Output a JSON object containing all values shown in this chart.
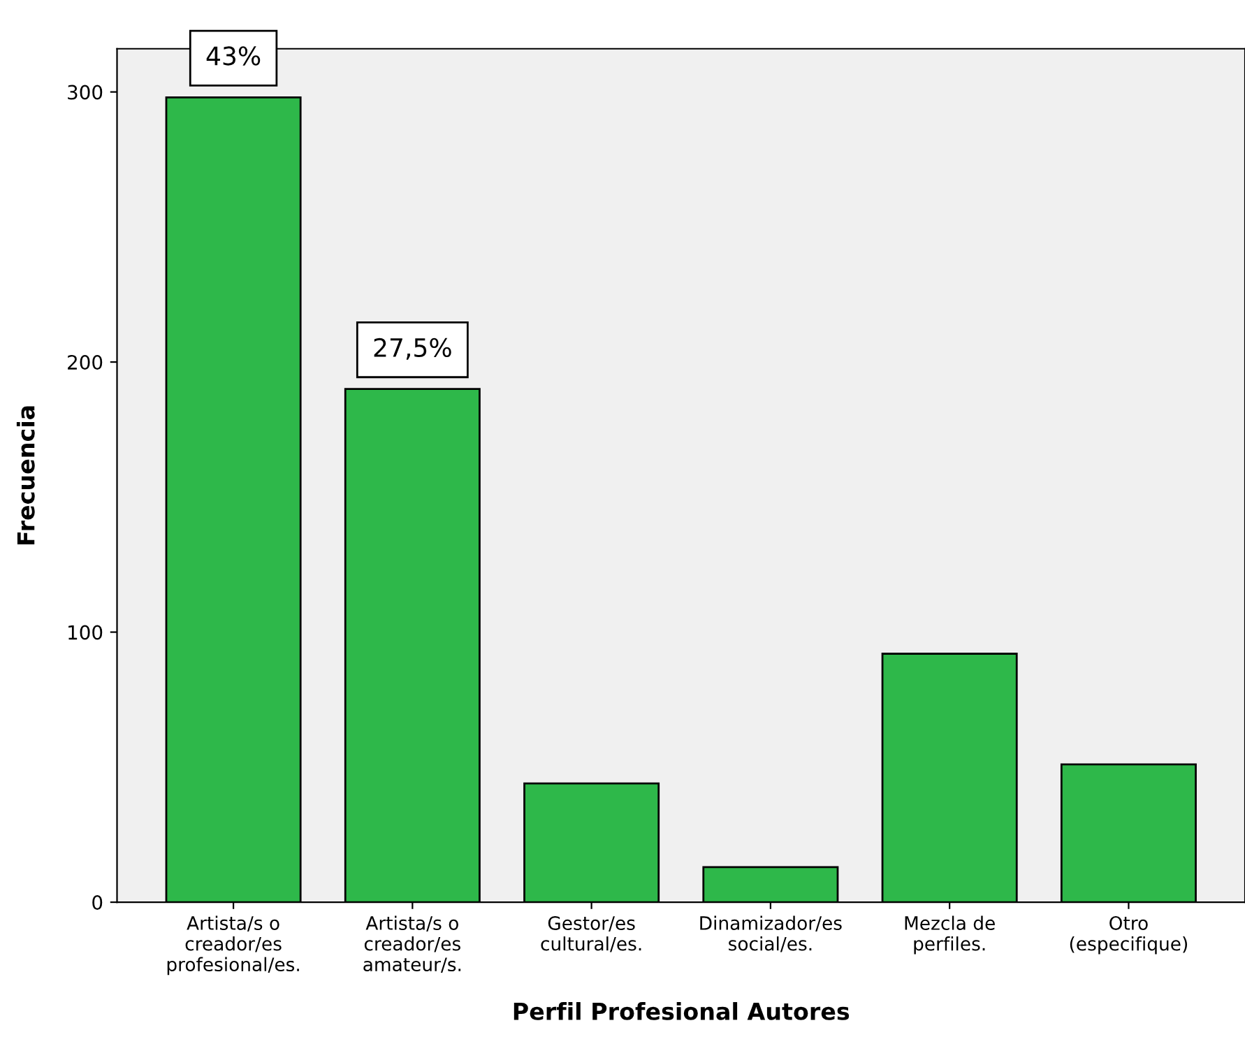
{
  "chart_data": {
    "type": "bar",
    "xlabel": "Perfil Profesional Autores",
    "ylabel": "Frecuencia",
    "categories": [
      "Artista/s o\ncreador/es\nprofesional/es.",
      "Artista/s o\ncreador/es\namateur/s.",
      "Gestor/es\ncultural/es.",
      "Dinamizador/es\nsocial/es.",
      "Mezcla de\nperfiles.",
      "Otro\n(especifique)"
    ],
    "values": [
      298,
      190,
      44,
      13,
      92,
      51
    ],
    "annotations": [
      {
        "text": "43%",
        "x": "Artista/s o\ncreador/es\nprofesional/es.",
        "y": 298
      },
      {
        "text": "27,5%",
        "x": "Artista/s o\ncreador/es\namateur/s.",
        "y": 190
      }
    ],
    "color": "#2eb84a",
    "ylim": [
      0,
      316
    ],
    "yticks": [
      0,
      100,
      200,
      300
    ],
    "grid": false,
    "legend": false
  }
}
